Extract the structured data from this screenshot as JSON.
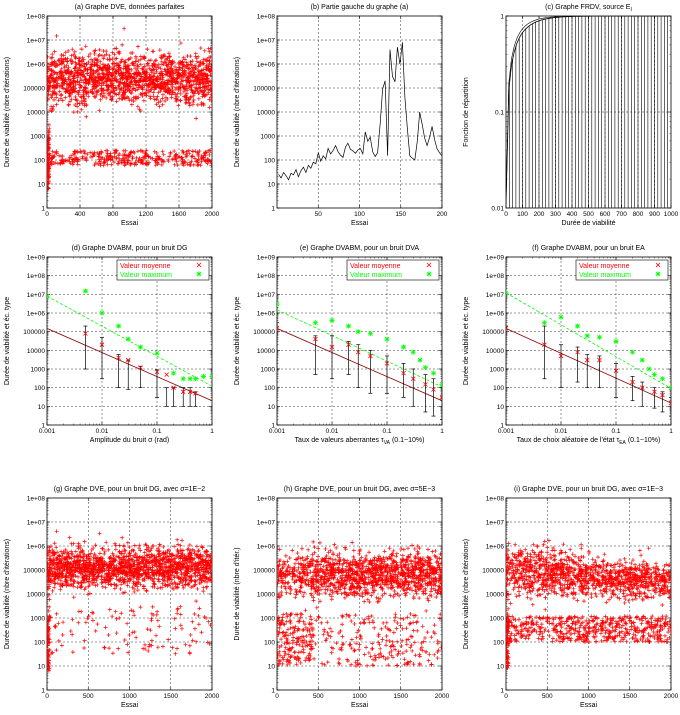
{
  "chart_data": [
    {
      "type": "scatter",
      "title": "(a) Graphe DVE, données parfaites",
      "xlabel": "Essai",
      "ylabel": "Durée de viabilité (nbre d'itérations)",
      "xlim": [
        0,
        2000
      ],
      "ylim": [
        1,
        100000000
      ],
      "ylog": true,
      "xticks": [
        0,
        400,
        800,
        1200,
        1600,
        2000
      ],
      "grid": true,
      "gen": {
        "n": 1900,
        "early_n": 80,
        "low_frac": 0.18,
        "low": [
          60,
          250
        ],
        "high": [
          8000,
          8000000
        ],
        "spread": "uniform-high"
      },
      "color": "#ff0000",
      "marker": "+"
    },
    {
      "type": "line",
      "title": "(b) Partie gauche du graphe (a)",
      "xlabel": "Essai",
      "ylabel": "Durée de viabilité (nbre d'itérations)",
      "xlim": [
        0,
        200
      ],
      "ylim": [
        1,
        100000000
      ],
      "ylog": true,
      "xticks": [
        50,
        100,
        150,
        200
      ],
      "grid": true,
      "x": [
        2,
        5,
        8,
        11,
        14,
        17,
        20,
        23,
        26,
        29,
        32,
        35,
        38,
        41,
        44,
        47,
        50,
        53,
        56,
        59,
        62,
        65,
        68,
        71,
        74,
        77,
        80,
        83,
        86,
        89,
        92,
        95,
        98,
        101,
        104,
        107,
        110,
        113,
        116,
        119,
        122,
        125,
        128,
        131,
        134,
        137,
        140,
        143,
        146,
        149,
        152,
        155,
        158,
        161,
        164,
        167,
        170,
        173,
        176,
        179,
        182,
        185,
        188,
        191,
        194,
        197,
        200
      ],
      "values": [
        25,
        18,
        30,
        22,
        15,
        28,
        24,
        40,
        20,
        35,
        50,
        30,
        60,
        45,
        80,
        70,
        200,
        90,
        150,
        110,
        300,
        180,
        250,
        400,
        220,
        160,
        130,
        350,
        500,
        280,
        240,
        190,
        260,
        300,
        180,
        1500,
        600,
        900,
        220,
        140,
        200,
        3000,
        90000,
        200000,
        150,
        4000000,
        300000,
        180000,
        5000000,
        1000000,
        8000000,
        40000,
        2000,
        150,
        120,
        100,
        600,
        10000,
        3000,
        800,
        400,
        900,
        2500,
        700,
        300,
        200,
        150
      ],
      "color": "#000000"
    },
    {
      "type": "step",
      "title": "(c) Graphe FRDV, source E",
      "title_sub": "I",
      "xlabel": "Durée de viabilité",
      "ylabel": "Fonction de répartition",
      "xlim": [
        0,
        1000
      ],
      "ylim": [
        0.01,
        1
      ],
      "ylog": true,
      "xticks": [
        0,
        100,
        200,
        300,
        400,
        500,
        600,
        700,
        800,
        900,
        1000
      ],
      "yticks": [
        0.01,
        0.1,
        1
      ],
      "grid": true,
      "color": "#000000"
    },
    {
      "type": "errorbar",
      "title": "(d) Graphe DVABM, pour un bruit DG",
      "xlabel": "Amplitude du bruit σ (rad)",
      "ylabel": "Durée de viabilité et éc. type",
      "xlim": [
        0.001,
        1
      ],
      "ylim": [
        1,
        1000000000
      ],
      "xlog": true,
      "ylog": true,
      "xticks": [
        0.001,
        0.01,
        0.1,
        1
      ],
      "xtick_labels": [
        "0.001",
        "0.01",
        "0.1",
        "1"
      ],
      "grid": true,
      "legend": [
        "Valeur moyenne",
        "Valeur maximum"
      ],
      "legend_position": "top-right",
      "mean": {
        "x": [
          0.005,
          0.01,
          0.02,
          0.03,
          0.05,
          0.1,
          0.15,
          0.2,
          0.3,
          0.4,
          0.5
        ],
        "y": [
          80000,
          20000,
          4000,
          3000,
          1200,
          700,
          500,
          100,
          60,
          60,
          50
        ]
      },
      "std": {
        "y": [
          1000,
          300,
          100,
          80,
          100,
          30,
          10,
          10,
          10,
          10,
          10
        ],
        "yh": [
          200000,
          50000,
          6000,
          3000,
          1400,
          900,
          100,
          100,
          100,
          100,
          60
        ]
      },
      "max": {
        "x": [
          0.001,
          0.005,
          0.01,
          0.02,
          0.03,
          0.05,
          0.1,
          0.2,
          0.3,
          0.4,
          0.5,
          0.7,
          1
        ],
        "y": [
          8000000,
          15000000,
          1000000,
          200000,
          40000,
          15000,
          7000,
          600,
          300,
          300,
          300,
          400,
          400
        ]
      },
      "fit_mean": {
        "x": [
          0.001,
          1
        ],
        "y": [
          150000,
          20
        ]
      },
      "fit_max": {
        "x": [
          0.001,
          1
        ],
        "y": [
          8000000,
          120
        ]
      },
      "colors": {
        "mean": "#ff0000",
        "fit_mean": "#8b0000",
        "max": "#00ff00",
        "errorbar": "#000000"
      }
    },
    {
      "type": "errorbar",
      "title": "(e) Graphe DVABM, pour un bruit DVA",
      "xlabel": "Taux de valeurs aberrantes τ",
      "xlabel_sub": "VA",
      "xlabel_suffix": " (0.1−10%)",
      "ylabel": "Durée de viabilité et éc. type",
      "xlim": [
        0.001,
        1
      ],
      "ylim": [
        1,
        1000000000
      ],
      "xlog": true,
      "ylog": true,
      "xticks": [
        0.001,
        0.01,
        0.1,
        1
      ],
      "xtick_labels": [
        "0.001",
        "0.01",
        "0.1",
        "1"
      ],
      "grid": true,
      "legend": [
        "Valeur moyenne",
        "Valeur maximum"
      ],
      "legend_position": "top-right",
      "mean": {
        "x": [
          0.001,
          0.005,
          0.01,
          0.02,
          0.03,
          0.05,
          0.1,
          0.2,
          0.3,
          0.5,
          0.7,
          1
        ],
        "y": [
          150000,
          40000,
          15000,
          20000,
          8000,
          5000,
          2000,
          600,
          300,
          150,
          80,
          30
        ]
      },
      "std": {
        "y": [
          1000,
          500,
          300,
          500,
          100,
          50,
          50,
          30,
          10,
          5,
          3,
          2
        ],
        "yh": [
          300000,
          60000,
          60000,
          30000,
          20000,
          10000,
          5000,
          2000,
          1000,
          500,
          300,
          100
        ]
      },
      "max": {
        "x": [
          0.001,
          0.005,
          0.01,
          0.02,
          0.03,
          0.05,
          0.1,
          0.2,
          0.3,
          0.4,
          0.5,
          0.7,
          1
        ],
        "y": [
          3000000,
          300000,
          400000,
          200000,
          100000,
          80000,
          40000,
          15000,
          8000,
          3000,
          1200,
          600,
          150
        ]
      },
      "fit_mean": {
        "x": [
          0.001,
          1
        ],
        "y": [
          150000,
          20
        ]
      },
      "fit_max": {
        "x": [
          0.001,
          1
        ],
        "y": [
          1500000,
          110
        ]
      },
      "colors": {
        "mean": "#ff0000",
        "fit_mean": "#8b0000",
        "max": "#00ff00",
        "errorbar": "#000000"
      }
    },
    {
      "type": "errorbar",
      "title": "(f) Graphe DVABM, pour un bruit EA",
      "xlabel": "Taux de choix aléatoire de l'état τ",
      "xlabel_sub": "EA",
      "xlabel_suffix": " (0.1−10%)",
      "ylabel": "Durée de viabilité et éc. type",
      "xlim": [
        0.001,
        1
      ],
      "ylim": [
        1,
        1000000000
      ],
      "xlog": true,
      "ylog": true,
      "xticks": [
        0.001,
        0.01,
        0.1,
        1
      ],
      "xtick_labels": [
        "0.001",
        "0.01",
        "0.1",
        "1"
      ],
      "grid": true,
      "legend": [
        "Valeur moyenne",
        "Valeur maximum"
      ],
      "legend_position": "top-right",
      "mean": {
        "x": [
          0.001,
          0.005,
          0.01,
          0.02,
          0.03,
          0.05,
          0.1,
          0.2,
          0.3,
          0.5,
          0.7,
          1
        ],
        "y": [
          150000,
          20000,
          5000,
          8000,
          3000,
          3000,
          800,
          200,
          100,
          60,
          40,
          15
        ]
      },
      "std": {
        "y": [
          1000,
          300,
          100,
          200,
          100,
          100,
          30,
          20,
          10,
          8,
          5,
          3
        ],
        "yh": [
          200000,
          200000,
          20000,
          15000,
          6000,
          5000,
          2000,
          400,
          200,
          100,
          60,
          30
        ]
      },
      "max": {
        "x": [
          0.001,
          0.005,
          0.01,
          0.02,
          0.03,
          0.05,
          0.1,
          0.2,
          0.3,
          0.4,
          0.5,
          0.7,
          1
        ],
        "y": [
          12000000,
          300000,
          600000,
          200000,
          60000,
          50000,
          30000,
          8000,
          3000,
          1000,
          500,
          300,
          100
        ]
      },
      "fit_mean": {
        "x": [
          0.001,
          1
        ],
        "y": [
          150000,
          15
        ]
      },
      "fit_max": {
        "x": [
          0.001,
          1
        ],
        "y": [
          12000000,
          90
        ]
      },
      "colors": {
        "mean": "#ff0000",
        "fit_mean": "#8b0000",
        "max": "#00ff00",
        "errorbar": "#000000"
      }
    },
    {
      "type": "scatter",
      "title": "(g) Graphe DVE, pour un bruit DG, avec σ=1E−2",
      "xlabel": "Essai",
      "ylabel": "Durée de viabilité (nbre d'itérations)",
      "xlim": [
        0,
        2000
      ],
      "ylim": [
        1,
        100000000
      ],
      "ylog": true,
      "xticks": [
        0,
        500,
        1000,
        1500,
        2000
      ],
      "grid": true,
      "gen": {
        "n": 1700,
        "early_n": 70,
        "low_frac": 0.06,
        "low": [
          30,
          3000
        ],
        "high": [
          8000,
          2000000
        ],
        "spread": "uniform-high"
      },
      "color": "#ff0000",
      "marker": "+"
    },
    {
      "type": "scatter",
      "title": "(h) Graphe DVE, pour un bruit DG, avec σ=5E−3",
      "xlabel": "Essai",
      "ylabel": "Durée de viabilité (nbre d'itér.)",
      "xlim": [
        0,
        2000
      ],
      "ylim": [
        1,
        100000000
      ],
      "ylog": true,
      "xticks": [
        0,
        500,
        1000,
        1500,
        2000
      ],
      "grid": true,
      "gen": {
        "n": 1700,
        "early_n": 0,
        "low_frac": 0.15,
        "low": [
          10,
          1500
        ],
        "high": [
          3000,
          1500000
        ],
        "spread": "uniform-high",
        "cluster_low_until": 420
      },
      "color": "#ff0000",
      "marker": "+"
    },
    {
      "type": "scatter",
      "title": "(i) Graphe DVE, pour un bruit DG, avec σ=1E−3",
      "xlabel": "Essai",
      "ylabel": "Durée de viabilité (nbre d'itérations)",
      "xlim": [
        0,
        2000
      ],
      "ylim": [
        1,
        100000000
      ],
      "ylog": true,
      "xticks": [
        0,
        500,
        1000,
        1500,
        2000
      ],
      "grid": true,
      "gen": {
        "n": 1700,
        "early_n": 60,
        "low_frac": 0.28,
        "low": [
          100,
          1200
        ],
        "high": [
          3000,
          4000000
        ],
        "spread": "uniform-high",
        "decay": true
      },
      "color": "#ff0000",
      "marker": "+"
    }
  ]
}
